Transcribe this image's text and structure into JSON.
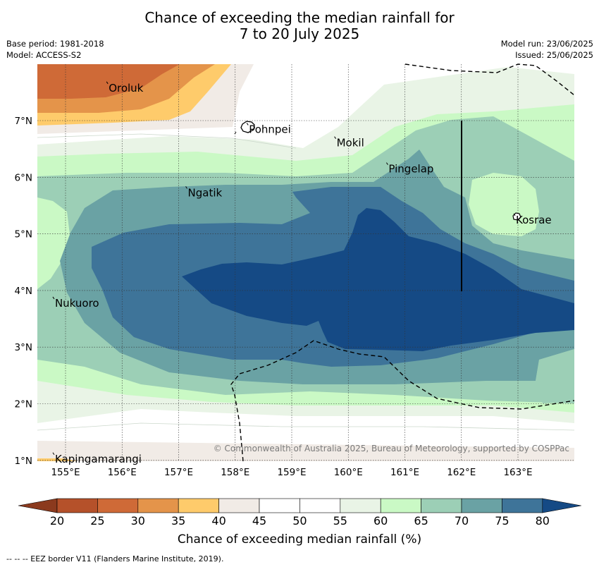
{
  "title": {
    "line1": "Chance of exceeding the median rainfall for",
    "line2": "7 to 20 July 2025"
  },
  "meta": {
    "base_period": "Base period: 1981-2018",
    "model": "Model: ACCESS-S2",
    "model_run": "Model run: 23/06/2025",
    "issued": "Issued: 25/06/2025"
  },
  "map": {
    "lon_ticks": [
      "155°E",
      "156°E",
      "157°E",
      "158°E",
      "159°E",
      "160°E",
      "161°E",
      "162°E",
      "163°E"
    ],
    "lat_ticks": [
      "7°N",
      "6°N",
      "5°N",
      "4°N",
      "3°N",
      "2°N",
      "1°N"
    ],
    "places": [
      {
        "name": "Oroluk",
        "lon": 155.75,
        "lat": 7.65
      },
      {
        "name": "Pohnpei",
        "lon": 158.23,
        "lat": 6.92
      },
      {
        "name": "Mokil",
        "lon": 159.78,
        "lat": 6.68
      },
      {
        "name": "Pingelap",
        "lon": 160.7,
        "lat": 6.22
      },
      {
        "name": "Ngatik",
        "lon": 157.15,
        "lat": 5.8
      },
      {
        "name": "Kosrae",
        "lon": 162.95,
        "lat": 5.32
      },
      {
        "name": "Nukuoro",
        "lon": 154.8,
        "lat": 3.85
      },
      {
        "name": "Kapingamarangi",
        "lon": 154.8,
        "lat": 1.1
      }
    ],
    "copyright": "© Commonwealth of Australia 2025, Bureau of Meteorology, supported by COSPPac"
  },
  "colorbar": {
    "levels": [
      "20",
      "25",
      "30",
      "35",
      "40",
      "45",
      "50",
      "55",
      "60",
      "65",
      "70",
      "75",
      "80"
    ],
    "colors": {
      "lt20": "#8b3a1e",
      "20_25": "#b5512a",
      "25_30": "#cf6a37",
      "30_35": "#e4944a",
      "35_40": "#fecb6b",
      "40_45": "#f1ebe6",
      "45_50": "#ffffff",
      "50_55": "#ffffff",
      "55_60": "#e9f4e6",
      "60_65": "#caf9c5",
      "65_70": "#9ccfb6",
      "70_75": "#6aa2a4",
      "75_80": "#3e7499",
      "gt80": "#154a85"
    },
    "title": "Chance of exceeding median rainfall (%)"
  },
  "footer": "--  --  -- EEZ border V11 (Flanders Marine Institute, 2019)."
}
